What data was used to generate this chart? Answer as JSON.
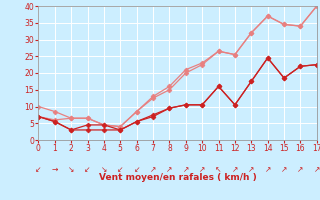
{
  "x": [
    0,
    1,
    2,
    3,
    4,
    5,
    6,
    7,
    8,
    9,
    10,
    11,
    12,
    13,
    14,
    15,
    16,
    17
  ],
  "y_light1": [
    10,
    8.5,
    6.5,
    6.5,
    4.5,
    4,
    8.5,
    12.5,
    15,
    20,
    22.5,
    26.5,
    25.5,
    32,
    37,
    34.5,
    34,
    40
  ],
  "y_light2": [
    7,
    6,
    6.5,
    6.5,
    4.5,
    4,
    8.5,
    13,
    16,
    21,
    23,
    26.5,
    25.5,
    32,
    37,
    34.5,
    34,
    40
  ],
  "y_dark1": [
    7,
    5.5,
    3,
    4.5,
    4.5,
    3,
    5.5,
    7.5,
    9.5,
    10.5,
    10.5,
    16,
    10.5,
    17.5,
    24.5,
    18.5,
    22,
    22.5
  ],
  "y_dark2": [
    7,
    5.5,
    3,
    3,
    3,
    3,
    5.5,
    7,
    9.5,
    10.5,
    10.5,
    16,
    10.5,
    17.5,
    24.5,
    18.5,
    22,
    22.5
  ],
  "color_light": "#e88080",
  "color_dark": "#cc2222",
  "bg_color": "#cceeff",
  "grid_color": "#aaddcc",
  "xlabel": "Vent moyen/en rafales ( km/h )",
  "ylim": [
    0,
    40
  ],
  "xlim": [
    0,
    17
  ],
  "yticks": [
    0,
    5,
    10,
    15,
    20,
    25,
    30,
    35,
    40
  ],
  "xticks": [
    0,
    1,
    2,
    3,
    4,
    5,
    6,
    7,
    8,
    9,
    10,
    11,
    12,
    13,
    14,
    15,
    16,
    17
  ],
  "arrow_labels": [
    "↙",
    "→",
    "↘",
    "↙",
    "↘",
    "↙",
    "↙",
    "↗",
    "↗",
    "↗",
    "↗",
    "↖",
    "↗",
    "↗",
    "↗",
    "↗",
    "↗",
    "↗"
  ]
}
